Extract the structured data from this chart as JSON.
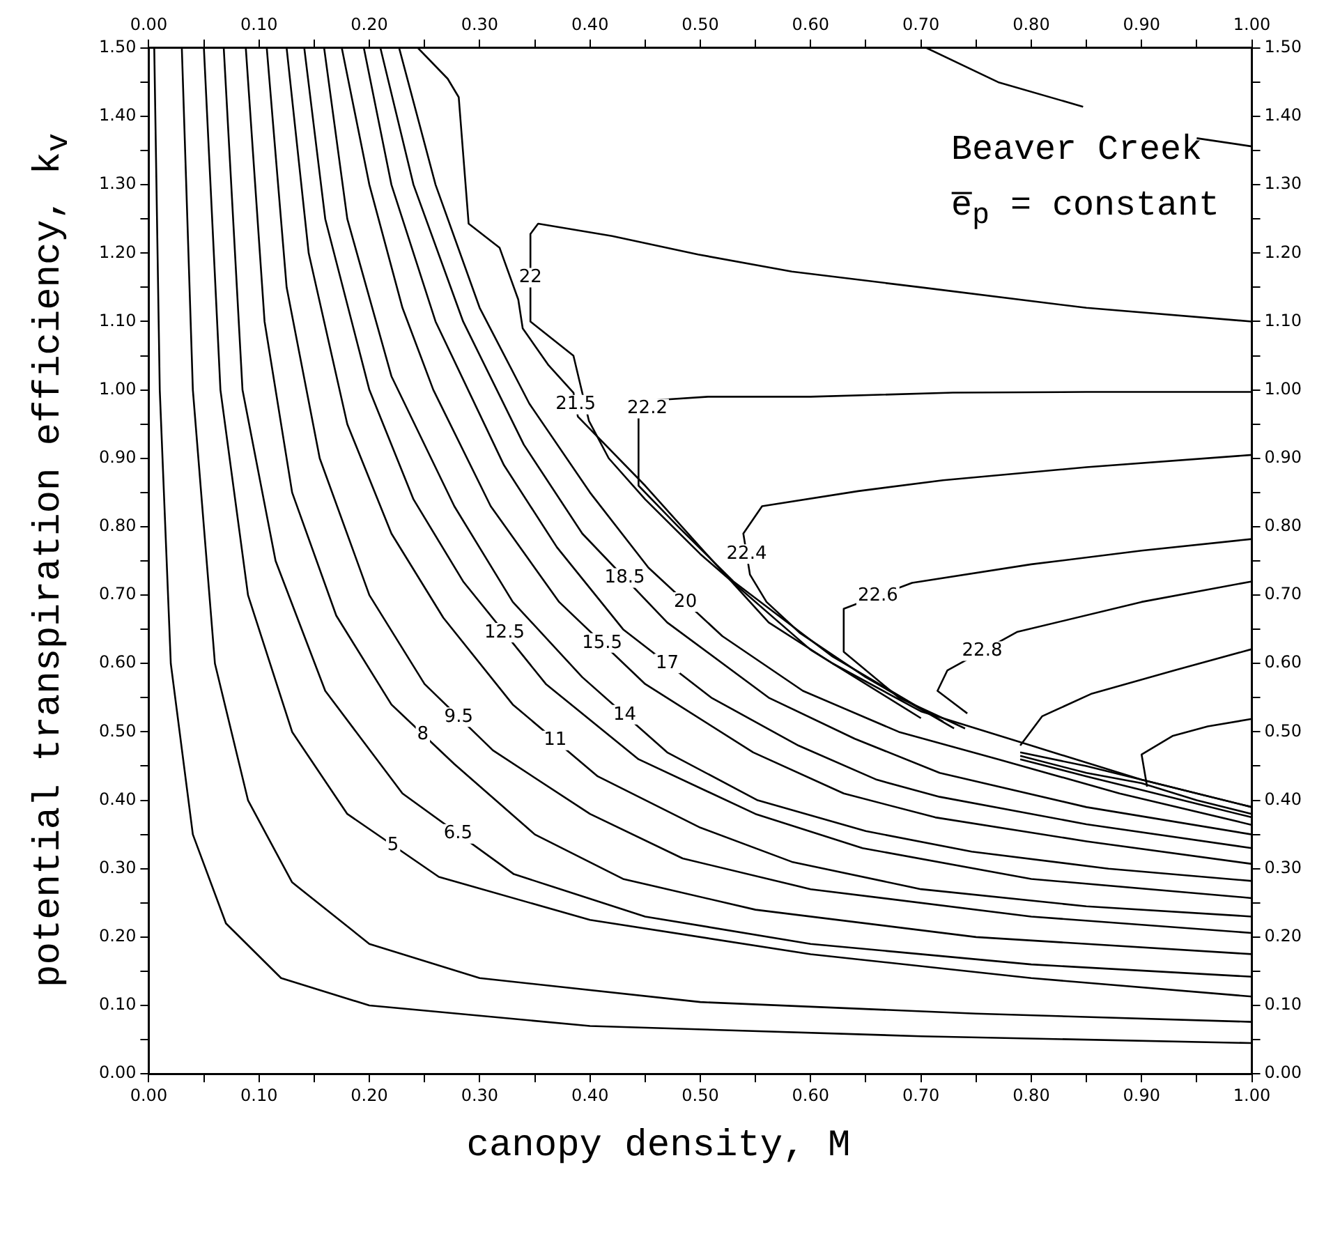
{
  "chart_data": {
    "type": "line",
    "xlabel": "canopy density, M",
    "ylabel": "potential transpiration efficiency, k$_{v}$",
    "annotations": [
      "Beaver Creek",
      "e̅$_{p}$ = constant"
    ],
    "xlim": [
      0,
      1
    ],
    "ylim": [
      0,
      1.5
    ],
    "x2lim": [
      0,
      1
    ],
    "y2lim": [
      0,
      1.5
    ],
    "xticks": [
      {
        "value": 0,
        "label": "0.00"
      },
      {
        "value": 0.05,
        "label": null
      },
      {
        "value": 0.1,
        "label": "0.10"
      },
      {
        "value": 0.15,
        "label": null
      },
      {
        "value": 0.2,
        "label": "0.20"
      },
      {
        "value": 0.25,
        "label": null
      },
      {
        "value": 0.3,
        "label": "0.30"
      },
      {
        "value": 0.35,
        "label": null
      },
      {
        "value": 0.4,
        "label": "0.40"
      },
      {
        "value": 0.45,
        "label": null
      },
      {
        "value": 0.5,
        "label": "0.50"
      },
      {
        "value": 0.55,
        "label": null
      },
      {
        "value": 0.6,
        "label": "0.60"
      },
      {
        "value": 0.65,
        "label": null
      },
      {
        "value": 0.7,
        "label": "0.70"
      },
      {
        "value": 0.75,
        "label": null
      },
      {
        "value": 0.8,
        "label": "0.80"
      },
      {
        "value": 0.85,
        "label": null
      },
      {
        "value": 0.9,
        "label": "0.90"
      },
      {
        "value": 0.95,
        "label": null
      },
      {
        "value": 1,
        "label": "1.00"
      }
    ],
    "x2ticks": [
      {
        "value": 0,
        "label": "0.00"
      },
      {
        "value": 0.05,
        "label": null
      },
      {
        "value": 0.1,
        "label": "0.10"
      },
      {
        "value": 0.15,
        "label": null
      },
      {
        "value": 0.2,
        "label": "0.20"
      },
      {
        "value": 0.25,
        "label": null
      },
      {
        "value": 0.3,
        "label": "0.30"
      },
      {
        "value": 0.35,
        "label": null
      },
      {
        "value": 0.4,
        "label": "0.40"
      },
      {
        "value": 0.45,
        "label": null
      },
      {
        "value": 0.5,
        "label": "0.50"
      },
      {
        "value": 0.55,
        "label": null
      },
      {
        "value": 0.6,
        "label": "0.60"
      },
      {
        "value": 0.65,
        "label": null
      },
      {
        "value": 0.7,
        "label": "0.70"
      },
      {
        "value": 0.75,
        "label": null
      },
      {
        "value": 0.8,
        "label": "0.80"
      },
      {
        "value": 0.85,
        "label": null
      },
      {
        "value": 0.9,
        "label": "0.90"
      },
      {
        "value": 0.95,
        "label": null
      },
      {
        "value": 1,
        "label": "1.00"
      }
    ],
    "yticks": [
      {
        "value": 0,
        "label": "0.00"
      },
      {
        "value": 0.05,
        "label": null
      },
      {
        "value": 0.1,
        "label": "0.10"
      },
      {
        "value": 0.15,
        "label": null
      },
      {
        "value": 0.2,
        "label": "0.20"
      },
      {
        "value": 0.25,
        "label": null
      },
      {
        "value": 0.3,
        "label": "0.30"
      },
      {
        "value": 0.35,
        "label": null
      },
      {
        "value": 0.4,
        "label": "0.40"
      },
      {
        "value": 0.45,
        "label": null
      },
      {
        "value": 0.5,
        "label": "0.50"
      },
      {
        "value": 0.55,
        "label": null
      },
      {
        "value": 0.6,
        "label": "0.60"
      },
      {
        "value": 0.65,
        "label": null
      },
      {
        "value": 0.7,
        "label": "0.70"
      },
      {
        "value": 0.75,
        "label": null
      },
      {
        "value": 0.8,
        "label": "0.80"
      },
      {
        "value": 0.85,
        "label": null
      },
      {
        "value": 0.9,
        "label": "0.90"
      },
      {
        "value": 0.95,
        "label": null
      },
      {
        "value": 1,
        "label": "1.00"
      },
      {
        "value": 1.05,
        "label": null
      },
      {
        "value": 1.1,
        "label": "1.10"
      },
      {
        "value": 1.15,
        "label": null
      },
      {
        "value": 1.2,
        "label": "1.20"
      },
      {
        "value": 1.25,
        "label": null
      },
      {
        "value": 1.3,
        "label": "1.30"
      },
      {
        "value": 1.35,
        "label": null
      },
      {
        "value": 1.4,
        "label": "1.40"
      },
      {
        "value": 1.45,
        "label": null
      },
      {
        "value": 1.5,
        "label": "1.50"
      }
    ],
    "y2ticks": [
      {
        "value": 0,
        "label": "0.00"
      },
      {
        "value": 0.05,
        "label": null
      },
      {
        "value": 0.1,
        "label": "0.10"
      },
      {
        "value": 0.15,
        "label": null
      },
      {
        "value": 0.2,
        "label": "0.20"
      },
      {
        "value": 0.25,
        "label": null
      },
      {
        "value": 0.3,
        "label": "0.30"
      },
      {
        "value": 0.35,
        "label": null
      },
      {
        "value": 0.4,
        "label": "0.40"
      },
      {
        "value": 0.45,
        "label": null
      },
      {
        "value": 0.5,
        "label": "0.50"
      },
      {
        "value": 0.55,
        "label": null
      },
      {
        "value": 0.6,
        "label": "0.60"
      },
      {
        "value": 0.65,
        "label": null
      },
      {
        "value": 0.7,
        "label": "0.70"
      },
      {
        "value": 0.75,
        "label": null
      },
      {
        "value": 0.8,
        "label": "0.80"
      },
      {
        "value": 0.85,
        "label": null
      },
      {
        "value": 0.9,
        "label": "0.90"
      },
      {
        "value": 0.95,
        "label": null
      },
      {
        "value": 1,
        "label": "1.00"
      },
      {
        "value": 1.05,
        "label": null
      },
      {
        "value": 1.1,
        "label": "1.10"
      },
      {
        "value": 1.15,
        "label": null
      },
      {
        "value": 1.2,
        "label": "1.20"
      },
      {
        "value": 1.25,
        "label": null
      },
      {
        "value": 1.3,
        "label": "1.30"
      },
      {
        "value": 1.35,
        "label": null
      },
      {
        "value": 1.4,
        "label": "1.40"
      },
      {
        "value": 1.45,
        "label": null
      },
      {
        "value": 1.5,
        "label": "1.50"
      }
    ],
    "series": [
      {
        "color": "#000000",
        "x": [
          0.005,
          0.01,
          0.02,
          0.04,
          0.07,
          0.12,
          0.2,
          0.4,
          0.7,
          1.0
        ],
        "values": [
          1.5,
          1.0,
          0.6,
          0.35,
          0.22,
          0.14,
          0.1,
          0.07,
          0.055,
          0.045
        ]
      },
      {
        "color": "#000000",
        "x": [
          0.03,
          0.04,
          0.06,
          0.09,
          0.13,
          0.2,
          0.3,
          0.5,
          0.75,
          1.0
        ],
        "values": [
          1.5,
          1.0,
          0.6,
          0.4,
          0.28,
          0.19,
          0.14,
          0.105,
          0.088,
          0.076
        ]
      },
      {
        "name": "5",
        "color": "#000000",
        "x": [
          0.05,
          0.065,
          0.09,
          0.13,
          0.18,
          0.263,
          0.4,
          0.6,
          0.8,
          1.0
        ],
        "values": [
          1.5,
          1.0,
          0.7,
          0.5,
          0.38,
          0.288,
          0.225,
          0.175,
          0.14,
          0.113
        ]
      },
      {
        "name": "6.5",
        "color": "#000000",
        "x": [
          0.068,
          0.085,
          0.115,
          0.16,
          0.23,
          0.331,
          0.45,
          0.6,
          0.8,
          1.0
        ],
        "values": [
          1.5,
          1.0,
          0.75,
          0.56,
          0.41,
          0.292,
          0.23,
          0.19,
          0.16,
          0.142
        ]
      },
      {
        "name": "8",
        "color": "#000000",
        "x": [
          0.088,
          0.105,
          0.13,
          0.17,
          0.22,
          0.277,
          0.35,
          0.43,
          0.55,
          0.75,
          1.0
        ],
        "values": [
          1.5,
          1.1,
          0.85,
          0.67,
          0.54,
          0.453,
          0.35,
          0.285,
          0.24,
          0.2,
          0.175
        ]
      },
      {
        "name": "9.5",
        "color": "#000000",
        "x": [
          0.107,
          0.125,
          0.155,
          0.2,
          0.25,
          0.312,
          0.4,
          0.484,
          0.6,
          0.8,
          1.0
        ],
        "values": [
          1.5,
          1.15,
          0.9,
          0.7,
          0.57,
          0.473,
          0.38,
          0.315,
          0.27,
          0.23,
          0.206
        ]
      },
      {
        "name": "11",
        "color": "#000000",
        "x": [
          0.125,
          0.145,
          0.18,
          0.22,
          0.267,
          0.33,
          0.407,
          0.5,
          0.583,
          0.7,
          0.85,
          1.0
        ],
        "values": [
          1.5,
          1.2,
          0.95,
          0.79,
          0.667,
          0.54,
          0.435,
          0.36,
          0.31,
          0.27,
          0.245,
          0.23
        ]
      },
      {
        "name": "12.5",
        "color": "#000000",
        "x": [
          0.141,
          0.16,
          0.2,
          0.24,
          0.285,
          0.36,
          0.444,
          0.55,
          0.647,
          0.8,
          1.0
        ],
        "values": [
          1.5,
          1.25,
          1.0,
          0.84,
          0.72,
          0.57,
          0.46,
          0.38,
          0.33,
          0.285,
          0.257
        ]
      },
      {
        "name": "14",
        "color": "#000000",
        "x": [
          0.159,
          0.18,
          0.22,
          0.277,
          0.33,
          0.393,
          0.47,
          0.552,
          0.65,
          0.746,
          0.87,
          1.0
        ],
        "values": [
          1.5,
          1.25,
          1.02,
          0.83,
          0.69,
          0.58,
          0.47,
          0.4,
          0.355,
          0.325,
          0.3,
          0.282
        ]
      },
      {
        "name": "15.5",
        "color": "#000000",
        "x": [
          0.175,
          0.2,
          0.23,
          0.258,
          0.31,
          0.372,
          0.45,
          0.548,
          0.63,
          0.713,
          0.85,
          1.0
        ],
        "values": [
          1.5,
          1.3,
          1.12,
          1.0,
          0.83,
          0.69,
          0.57,
          0.47,
          0.41,
          0.375,
          0.34,
          0.307
        ]
      },
      {
        "name": "17",
        "color": "#000000",
        "x": [
          0.195,
          0.22,
          0.26,
          0.322,
          0.37,
          0.43,
          0.51,
          0.589,
          0.66,
          0.717,
          0.85,
          1.0
        ],
        "values": [
          1.5,
          1.3,
          1.1,
          0.89,
          0.77,
          0.65,
          0.55,
          0.48,
          0.43,
          0.405,
          0.365,
          0.33
        ]
      },
      {
        "name": "18.5",
        "color": "#000000",
        "x": [
          0.21,
          0.24,
          0.285,
          0.34,
          0.393,
          0.47,
          0.562,
          0.64,
          0.717,
          0.85,
          1.0
        ],
        "values": [
          1.5,
          1.3,
          1.1,
          0.92,
          0.79,
          0.66,
          0.55,
          0.49,
          0.44,
          0.39,
          0.35
        ]
      },
      {
        "name": "20",
        "color": "#000000",
        "x": [
          0.227,
          0.26,
          0.3,
          0.345,
          0.4,
          0.453,
          0.52,
          0.593,
          0.68,
          0.77,
          0.88,
          1.0
        ],
        "values": [
          1.5,
          1.3,
          1.12,
          0.98,
          0.85,
          0.74,
          0.64,
          0.56,
          0.5,
          0.46,
          0.41,
          0.364
        ]
      },
      {
        "name": "21.5",
        "color": "#000000",
        "x": [
          0.244,
          0.271,
          0.281,
          0.29,
          0.318,
          0.335,
          0.339,
          0.362,
          0.385,
          0.389,
          0.45,
          0.5,
          0.562,
          0.62,
          0.7,
          0.8,
          0.9,
          1.0
        ],
        "values": [
          1.5,
          1.455,
          1.428,
          1.243,
          1.208,
          1.132,
          1.09,
          1.037,
          0.996,
          0.961,
          0.86,
          0.77,
          0.66,
          0.6,
          0.53,
          0.48,
          0.43,
          0.39
        ]
      },
      {
        "name": "22",
        "color": "#000000",
        "x": [
          0.7,
          0.6,
          0.5,
          0.45,
          0.417,
          0.399,
          0.385,
          0.346,
          0.346,
          0.353,
          0.42,
          0.498,
          0.583,
          0.7,
          0.85,
          1.0
        ],
        "values": [
          0.52,
          0.62,
          0.76,
          0.84,
          0.9,
          0.955,
          1.05,
          1.1,
          1.228,
          1.243,
          1.225,
          1.198,
          1.173,
          1.15,
          1.12,
          1.1
        ]
      },
      {
        "name": "22.2",
        "color": "#000000",
        "x": [
          0.72,
          0.62,
          0.53,
          0.48,
          0.444,
          0.444,
          0.46,
          0.507,
          0.6,
          0.729,
          0.85,
          1.0
        ],
        "values": [
          0.515,
          0.61,
          0.72,
          0.8,
          0.86,
          0.96,
          0.985,
          0.99,
          0.99,
          0.996,
          0.997,
          0.997
        ]
      },
      {
        "name": "22.4",
        "color": "#000000",
        "x": [
          0.73,
          0.65,
          0.59,
          0.56,
          0.545,
          0.539,
          0.556,
          0.643,
          0.72,
          0.85,
          1.0
        ],
        "values": [
          0.505,
          0.58,
          0.645,
          0.69,
          0.73,
          0.79,
          0.83,
          0.852,
          0.868,
          0.887,
          0.905
        ]
      },
      {
        "name": "22.6",
        "color": "#000000",
        "x": [
          0.74,
          0.68,
          0.63,
          0.63,
          0.692,
          0.8,
          0.9,
          1.0
        ],
        "values": [
          0.505,
          0.55,
          0.617,
          0.68,
          0.718,
          0.745,
          0.765,
          0.782
        ]
      },
      {
        "name": "22.8",
        "color": "#000000",
        "x": [
          0.742,
          0.715,
          0.724,
          0.787,
          0.9,
          1.0
        ],
        "values": [
          0.527,
          0.56,
          0.59,
          0.646,
          0.69,
          0.72
        ]
      },
      {
        "color": "#000000",
        "x": [
          0.79,
          0.81,
          0.855,
          0.93,
          1.0
        ],
        "values": [
          0.48,
          0.523,
          0.556,
          0.59,
          0.621
        ]
      },
      {
        "color": "#000000",
        "x": [
          0.905,
          0.9,
          0.928,
          0.96,
          1.0
        ],
        "values": [
          0.42,
          0.467,
          0.494,
          0.508,
          0.519
        ]
      },
      {
        "color": "#000000",
        "x": [
          0.79,
          0.85,
          0.9,
          0.95,
          1.0
        ],
        "values": [
          0.47,
          0.45,
          0.43,
          0.41,
          0.39
        ]
      },
      {
        "color": "#000000",
        "x": [
          0.79,
          0.85,
          0.9,
          0.95,
          1.0
        ],
        "values": [
          0.465,
          0.44,
          0.425,
          0.4,
          0.38
        ]
      },
      {
        "color": "#000000",
        "x": [
          0.79,
          0.85,
          0.9,
          0.95,
          1.0
        ],
        "values": [
          0.46,
          0.435,
          0.415,
          0.395,
          0.375
        ]
      },
      {
        "color": "#000000",
        "x": [
          0.705,
          0.77,
          0.847,
          0.9,
          0.95,
          1.0
        ],
        "values": [
          1.5,
          1.45,
          1.414,
          null,
          1.368,
          1.356
        ]
      }
    ]
  }
}
